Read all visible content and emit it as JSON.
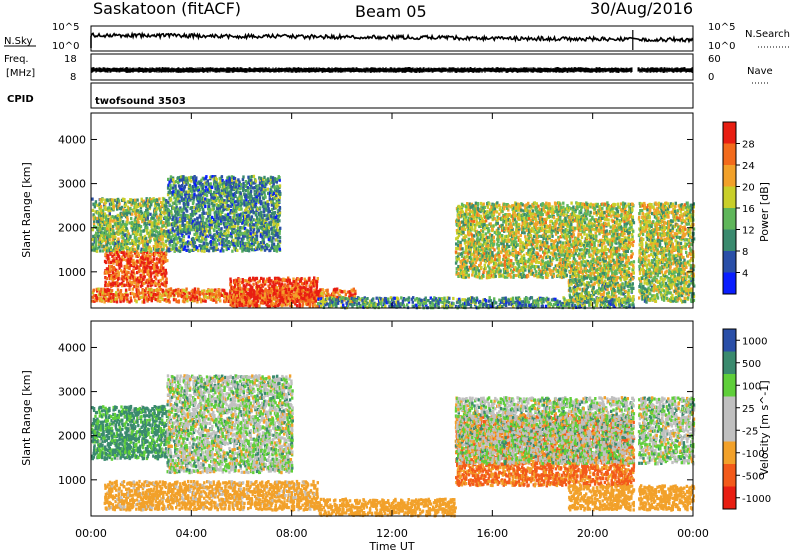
{
  "header": {
    "station": "Saskatoon (fitACF)",
    "beam": "Beam 05",
    "date": "30/Aug/2016"
  },
  "summary": {
    "nsky_label": "N.Sky",
    "nsearch_label": "N.Search",
    "nsky_ticks": [
      "10^5",
      "10^0"
    ],
    "nsearch_ticks": [
      "10^5",
      "10^0"
    ],
    "freq_label_1": "Freq.",
    "freq_label_2": "[MHz]",
    "freq_ticks": [
      "18",
      "8"
    ],
    "nave_label": "Nave",
    "nave_ticks": [
      "60",
      "0"
    ],
    "cpid_label": "CPID",
    "cpid_value": "twofsound 3503"
  },
  "colors": {
    "power": [
      "#0a1eff",
      "#2a4fa8",
      "#3a8a6e",
      "#5fb65a",
      "#c9cf2a",
      "#f2a12a",
      "#f36b1c",
      "#e81e12"
    ],
    "velocity": [
      "#e81e12",
      "#f35a1a",
      "#f2a12a",
      "#c0c0c0",
      "#c0c0c0",
      "#5fcf3a",
      "#3a8a6e",
      "#2a4fa8"
    ]
  },
  "chart_data": [
    {
      "type": "heatmap",
      "title": "",
      "xlabel": "Time UT",
      "ylabel": "Slant Range [km]",
      "xlim": [
        "00:00",
        "24:00"
      ],
      "ylim": [
        180,
        4600
      ],
      "x_ticks": [
        "00:00",
        "04:00",
        "08:00",
        "12:00",
        "16:00",
        "20:00",
        "00:00"
      ],
      "y_ticks": [
        "1000",
        "2000",
        "3000",
        "4000"
      ],
      "colorbar_label": "Power [dB]",
      "colorbar_ticks": [
        "4",
        "8",
        "12",
        "16",
        "20",
        "24",
        "28"
      ],
      "colorbar_range": [
        0,
        30
      ],
      "data_gap_hours": [
        [
          21.6,
          21.8
        ]
      ],
      "echo_bands": [
        {
          "t_start": 0.0,
          "t_end": 10.5,
          "range_start_km": 350,
          "range_end_km": 650,
          "power_db": 24
        },
        {
          "t_start": 0.5,
          "t_end": 3.0,
          "range_start_km": 700,
          "range_end_km": 1500,
          "power_db": 26
        },
        {
          "t_start": 0.0,
          "t_end": 3.0,
          "range_start_km": 1500,
          "range_end_km": 2700,
          "power_db": 14
        },
        {
          "t_start": 3.0,
          "t_end": 7.5,
          "range_start_km": 1500,
          "range_end_km": 3200,
          "power_db": 10
        },
        {
          "t_start": 5.5,
          "t_end": 9.0,
          "range_start_km": 250,
          "range_end_km": 900,
          "power_db": 27
        },
        {
          "t_start": 9.0,
          "t_end": 21.6,
          "range_start_km": 220,
          "range_end_km": 450,
          "power_db": 10
        },
        {
          "t_start": 14.5,
          "t_end": 24.0,
          "range_start_km": 900,
          "range_end_km": 2600,
          "power_db": 16
        },
        {
          "t_start": 19.0,
          "t_end": 24.0,
          "range_start_km": 350,
          "range_end_km": 900,
          "power_db": 14
        }
      ]
    },
    {
      "type": "heatmap",
      "title": "",
      "xlabel": "Time UT",
      "ylabel": "Slant Range [km]",
      "xlim": [
        "00:00",
        "24:00"
      ],
      "ylim": [
        180,
        4600
      ],
      "x_ticks": [
        "00:00",
        "04:00",
        "08:00",
        "12:00",
        "16:00",
        "20:00",
        "00:00"
      ],
      "y_ticks": [
        "1000",
        "2000",
        "3000",
        "4000"
      ],
      "colorbar_label": "Velocity [m s^-1]",
      "colorbar_ticks": [
        "1000",
        "500",
        "100",
        "25",
        "-25",
        "-100",
        "-500",
        "-1000"
      ],
      "data_gap_hours": [
        [
          21.6,
          21.8
        ]
      ],
      "echo_bands": [
        {
          "t_start": 0.0,
          "t_end": 3.0,
          "range_start_km": 1500,
          "range_end_km": 2700,
          "velocity_ms": 150
        },
        {
          "t_start": 0.5,
          "t_end": 9.0,
          "range_start_km": 350,
          "range_end_km": 1000,
          "velocity_ms": -200
        },
        {
          "t_start": 3.0,
          "t_end": 8.0,
          "range_start_km": 1200,
          "range_end_km": 3400,
          "velocity_ms": 0
        },
        {
          "t_start": 9.0,
          "t_end": 14.5,
          "range_start_km": 220,
          "range_end_km": 600,
          "velocity_ms": -250
        },
        {
          "t_start": 14.5,
          "t_end": 21.6,
          "range_start_km": 900,
          "range_end_km": 2500,
          "velocity_ms": -550
        },
        {
          "t_start": 14.5,
          "t_end": 24.0,
          "range_start_km": 1400,
          "range_end_km": 2900,
          "velocity_ms": 0
        },
        {
          "t_start": 19.0,
          "t_end": 24.0,
          "range_start_km": 350,
          "range_end_km": 900,
          "velocity_ms": -300
        }
      ]
    }
  ]
}
